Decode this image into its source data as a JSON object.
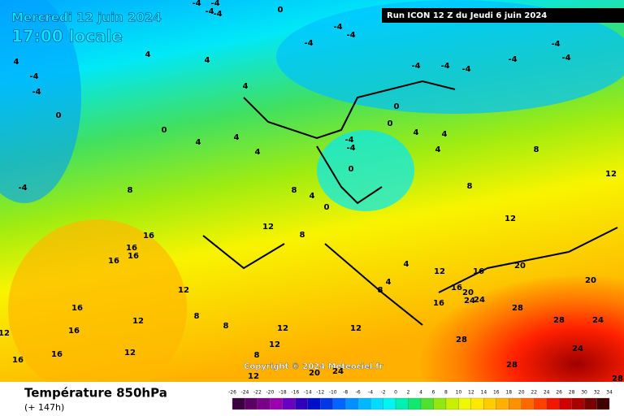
{
  "header": {
    "date": "Mercredi 12 juin 2024",
    "time": "17:00 locale",
    "run": "Run ICON 12 Z du Jeudi 6 juin 2024"
  },
  "footer": {
    "title": "Température 850hPa",
    "subtitle": "(+ 147h)",
    "copyright": "Copyright © 2024 Meteociel.fr"
  },
  "legend": {
    "ticks": [
      -26,
      -24,
      -22,
      -20,
      -18,
      -16,
      -14,
      -12,
      -10,
      -8,
      -6,
      -4,
      -2,
      0,
      2,
      4,
      6,
      8,
      10,
      12,
      14,
      16,
      18,
      20,
      22,
      24,
      26,
      28,
      30,
      32,
      34
    ],
    "colors": [
      "#3a0040",
      "#5c0066",
      "#7a008c",
      "#9a00b0",
      "#6a00c0",
      "#3000b8",
      "#0010c8",
      "#0038e8",
      "#0064ff",
      "#0090ff",
      "#00b8ff",
      "#00dcff",
      "#00f4f0",
      "#00f0b0",
      "#10e870",
      "#50e030",
      "#90e810",
      "#c8f000",
      "#f0f800",
      "#ffe800",
      "#ffcc00",
      "#ffb000",
      "#ff9000",
      "#ff6800",
      "#ff4000",
      "#f01800",
      "#d00000",
      "#a80000",
      "#780000",
      "#400000"
    ]
  },
  "contour_labels": [
    -4,
    -4,
    -4,
    -4,
    0,
    4,
    4,
    4,
    4,
    -4,
    -4,
    -4,
    -4,
    -4,
    -4,
    -4,
    -4,
    -4,
    -4,
    -4,
    0,
    0,
    0,
    0,
    4,
    4,
    4,
    4,
    4,
    4,
    -4,
    -4,
    0,
    -4,
    8,
    8,
    4,
    0,
    8,
    8,
    12,
    12,
    12,
    16,
    16,
    16,
    16,
    8,
    4,
    12,
    16,
    20,
    20,
    16,
    20,
    24,
    24,
    4,
    8,
    12,
    16,
    16,
    28,
    8,
    12,
    8,
    12,
    12,
    28,
    24,
    12,
    16,
    28,
    24,
    12,
    12,
    16,
    16,
    8,
    28,
    28,
    12,
    20,
    24
  ]
}
